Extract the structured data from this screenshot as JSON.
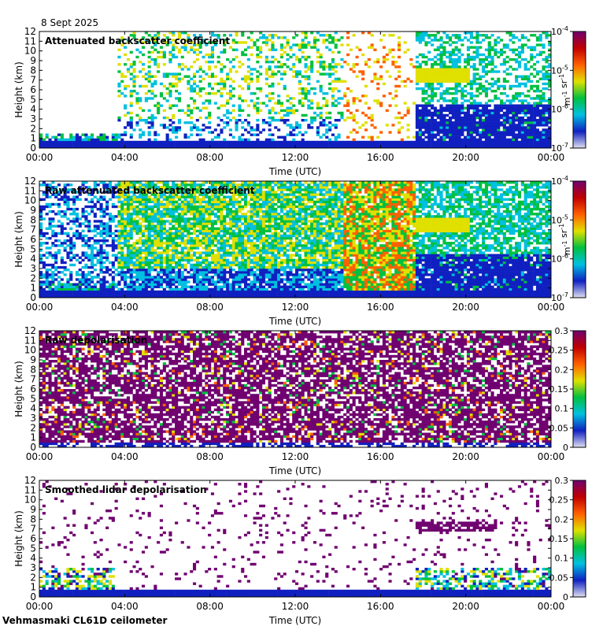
{
  "page": {
    "date": "8 Sept 2025",
    "footer": "Vehmasmaki CL61D ceilometer"
  },
  "colors": {
    "scale": [
      "#e0e0f0",
      "#1020c0",
      "#00c0e0",
      "#00c040",
      "#e0e000",
      "#ff6000",
      "#c00000",
      "#700070"
    ],
    "background": "#ffffff"
  },
  "chart_data": [
    {
      "type": "heatmap",
      "title": "Attenuated backscatter coefficient",
      "xlabel": "Time (UTC)",
      "ylabel": "Height (km)",
      "x_ticks": [
        "00:00",
        "04:00",
        "08:00",
        "12:00",
        "16:00",
        "20:00",
        "00:00"
      ],
      "y_ticks": [
        "0",
        "1",
        "2",
        "3",
        "4",
        "5",
        "6",
        "7",
        "8",
        "9",
        "10",
        "11",
        "12"
      ],
      "xlim": [
        0,
        24
      ],
      "ylim": [
        0,
        12
      ],
      "colorbar": {
        "scale": "log",
        "range": [
          1e-07,
          0.0001
        ],
        "tick_base": "10",
        "tick_exponents": [
          "-7",
          "-6",
          "-5",
          "-4"
        ],
        "unit_label": "m-1 sr-1"
      }
    },
    {
      "type": "heatmap",
      "title": "Raw attenuated backscatter coefficient",
      "xlabel": "Time (UTC)",
      "ylabel": "Height (km)",
      "x_ticks": [
        "00:00",
        "04:00",
        "08:00",
        "12:00",
        "16:00",
        "20:00",
        "00:00"
      ],
      "y_ticks": [
        "0",
        "1",
        "2",
        "3",
        "4",
        "5",
        "6",
        "7",
        "8",
        "9",
        "10",
        "11",
        "12"
      ],
      "xlim": [
        0,
        24
      ],
      "ylim": [
        0,
        12
      ],
      "colorbar": {
        "scale": "log",
        "range": [
          1e-07,
          0.0001
        ],
        "tick_base": "10",
        "tick_exponents": [
          "-7",
          "-6",
          "-5",
          "-4"
        ],
        "unit_label": "m-1 sr-1"
      }
    },
    {
      "type": "heatmap",
      "title": "Raw depolarisation",
      "xlabel": "Time (UTC)",
      "ylabel": "Height (km)",
      "x_ticks": [
        "00:00",
        "04:00",
        "08:00",
        "12:00",
        "16:00",
        "20:00",
        "00:00"
      ],
      "y_ticks": [
        "0",
        "1",
        "2",
        "3",
        "4",
        "5",
        "6",
        "7",
        "8",
        "9",
        "10",
        "11",
        "12"
      ],
      "xlim": [
        0,
        24
      ],
      "ylim": [
        0,
        12
      ],
      "colorbar": {
        "scale": "linear",
        "range": [
          0,
          0.3
        ],
        "ticks": [
          "0",
          "0.05",
          "0.1",
          "0.15",
          "0.2",
          "0.25",
          "0.3"
        ]
      }
    },
    {
      "type": "heatmap",
      "title": "Smoothed lidar depolarisation",
      "xlabel": "Time (UTC)",
      "ylabel": "Height (km)",
      "x_ticks": [
        "00:00",
        "04:00",
        "08:00",
        "12:00",
        "16:00",
        "20:00",
        "00:00"
      ],
      "y_ticks": [
        "0",
        "1",
        "2",
        "3",
        "4",
        "5",
        "6",
        "7",
        "8",
        "9",
        "10",
        "11",
        "12"
      ],
      "xlim": [
        0,
        24
      ],
      "ylim": [
        0,
        12
      ],
      "colorbar": {
        "scale": "linear",
        "range": [
          0,
          0.3
        ],
        "ticks": [
          "0",
          "0.05",
          "0.1",
          "0.15",
          "0.2",
          "0.25",
          "0.3"
        ]
      }
    }
  ]
}
